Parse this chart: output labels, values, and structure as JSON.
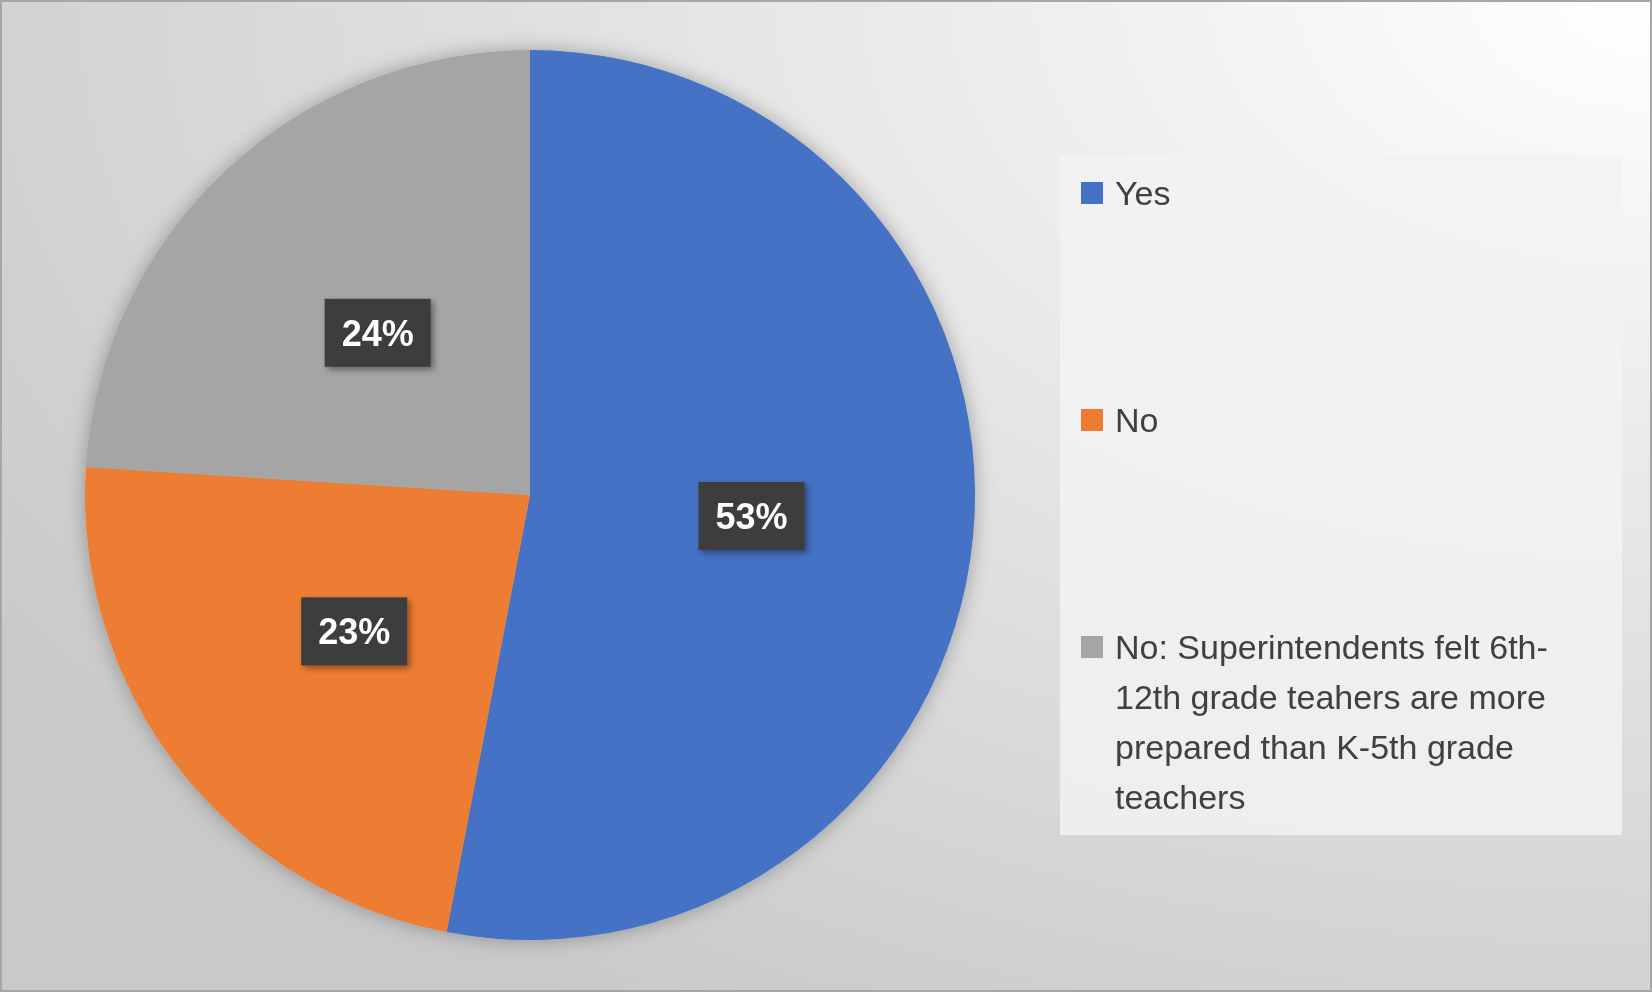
{
  "chart_data": {
    "type": "pie",
    "categories": [
      "Yes",
      "No",
      "No: Superintendents felt 6th-12th grade teahers are more prepared than K-5th grade teachers"
    ],
    "values": [
      53,
      23,
      24
    ],
    "colors": [
      "#4472c4",
      "#ed7d31",
      "#a5a5a5"
    ],
    "value_labels": [
      "53%",
      "23%",
      "24%"
    ],
    "legend": "right"
  }
}
